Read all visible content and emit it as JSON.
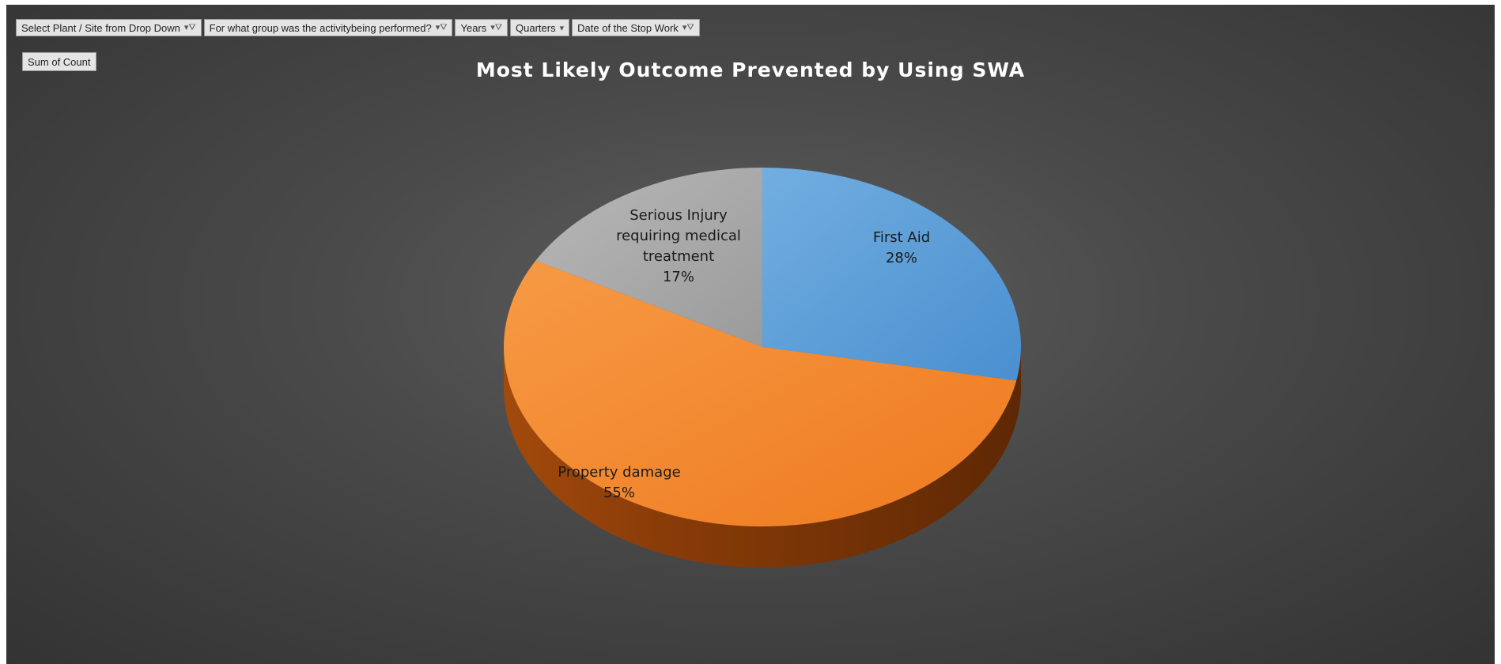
{
  "filters": [
    {
      "label": "Select Plant / Site from Drop Down",
      "icon": "filter-icon"
    },
    {
      "label": "For what group was the activitybeing performed?",
      "icon": "filter-icon"
    },
    {
      "label": "Years",
      "icon": "filter-icon"
    },
    {
      "label": "Quarters",
      "icon": "dropdown-arrow-icon"
    },
    {
      "label": "Date of the Stop Work",
      "icon": "filter-icon"
    }
  ],
  "value_field": "Sum of Count",
  "colors": {
    "background": "#4a4a4a",
    "first_aid": "#5b9bd5",
    "property_damage": "#f28a2e",
    "serious_injury": "#a5a5a5"
  },
  "chart_data": {
    "type": "pie",
    "title": "Most Likely Outcome Prevented by Using SWA",
    "slices": [
      {
        "label": "First Aid",
        "value": 28,
        "display": "28%"
      },
      {
        "label": "Property damage",
        "value": 55,
        "display": "55%"
      },
      {
        "label": "Serious Injury requiring medical treatment",
        "value": 17,
        "display": "17%"
      }
    ]
  }
}
